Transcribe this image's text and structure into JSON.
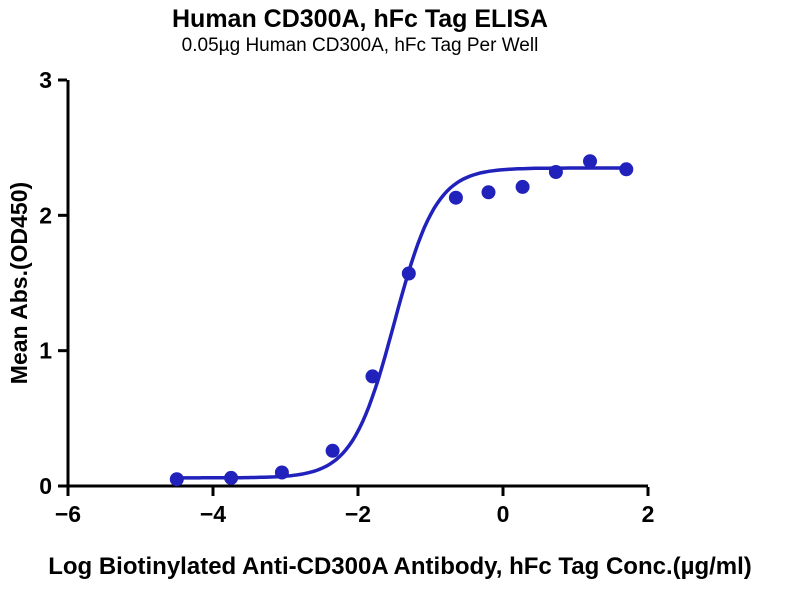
{
  "chart_data": {
    "type": "scatter",
    "title": "Human CD300A, hFc Tag ELISA",
    "subtitle": "0.05µg Human CD300A, hFc Tag Per Well",
    "xlabel": "Log Biotinylated Anti-CD300A Antibody, hFc Tag Conc.(µg/ml)",
    "ylabel": "Mean Abs.(OD450)",
    "xlim": [
      -6,
      2
    ],
    "ylim": [
      0,
      3
    ],
    "x_ticks": [
      -6,
      -4,
      -2,
      0,
      2
    ],
    "y_ticks": [
      0,
      1,
      2,
      3
    ],
    "grid": false,
    "legend": "none",
    "points": {
      "x": [
        -4.5,
        -3.75,
        -3.05,
        -2.35,
        -1.8,
        -1.3,
        -0.65,
        -0.2,
        0.27,
        0.73,
        1.2,
        1.7
      ],
      "y": [
        0.05,
        0.06,
        0.1,
        0.26,
        0.81,
        1.57,
        2.13,
        2.17,
        2.21,
        2.32,
        2.4,
        2.34
      ]
    },
    "fit": {
      "model": "4PL-sigmoid",
      "bottom": 0.06,
      "top": 2.35,
      "logEC50": -1.5,
      "hillslope": 1.5,
      "curve_x_range": [
        -4.55,
        1.75
      ]
    },
    "colors": {
      "series": "#2121bb",
      "axis": "#000000",
      "background": "#ffffff"
    }
  }
}
